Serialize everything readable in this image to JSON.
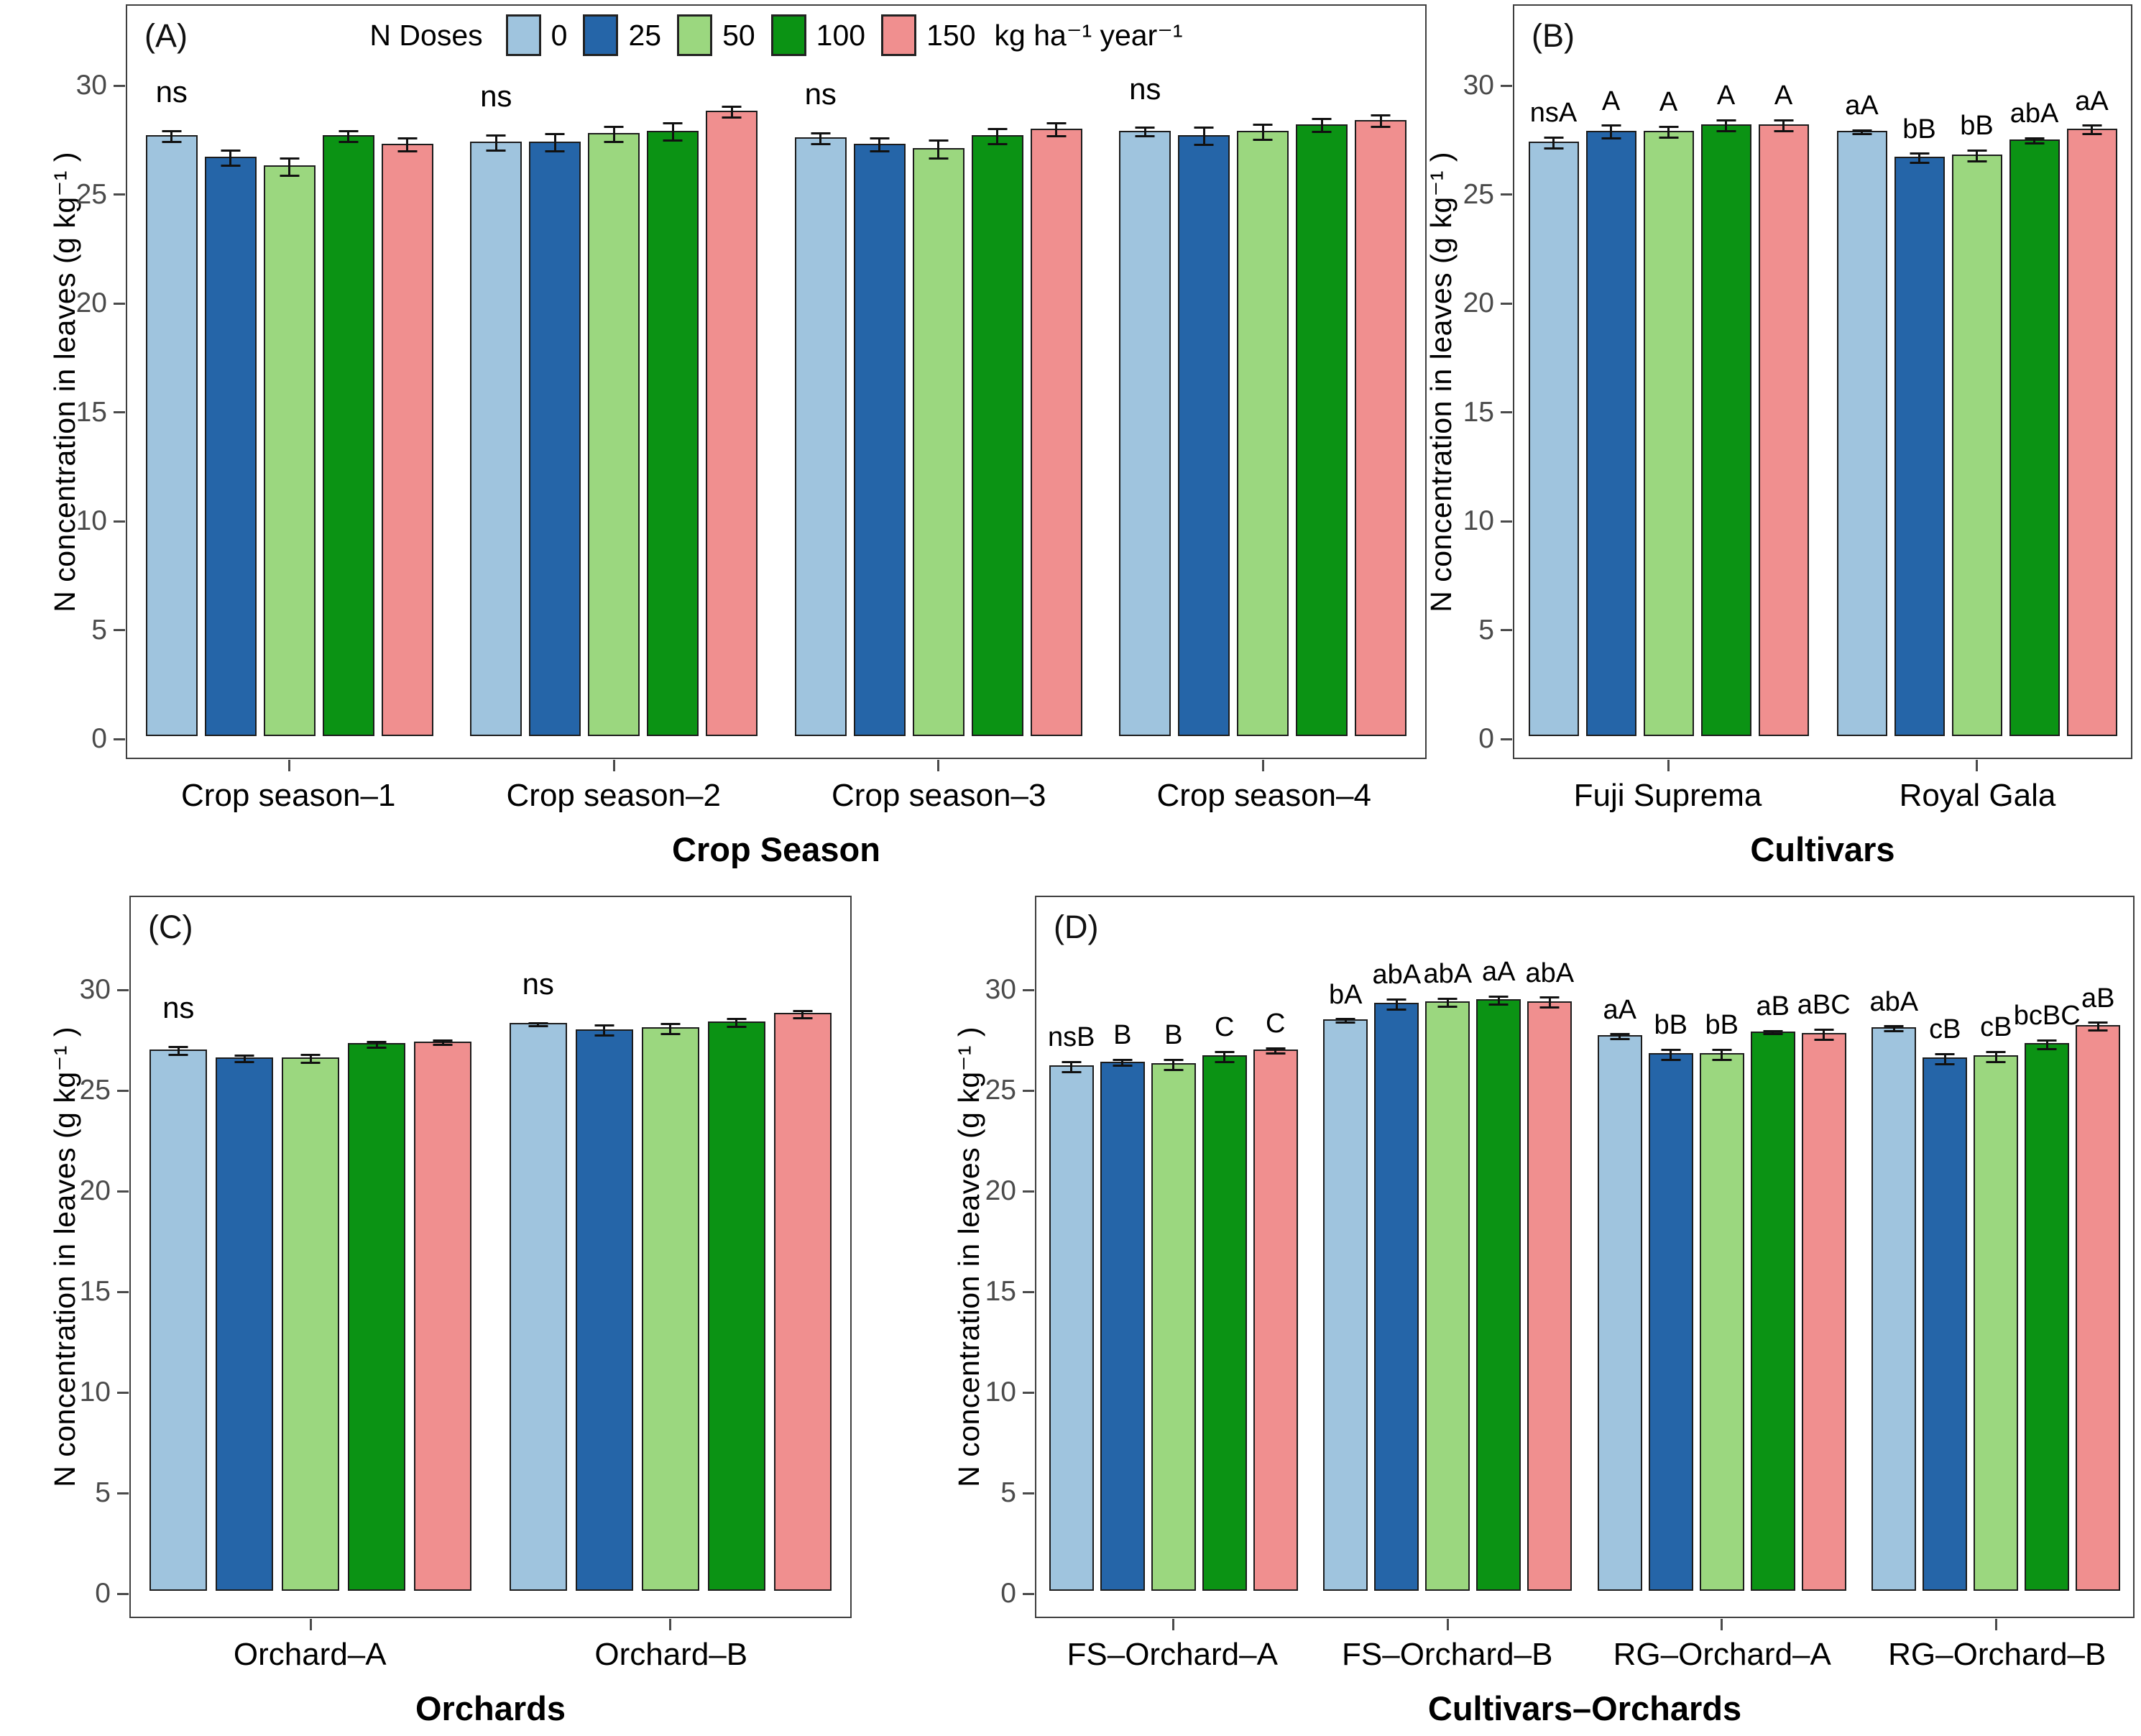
{
  "figure": {
    "background": "#ffffff",
    "ylabel": "N concentration in leaves (g kg⁻¹ )"
  },
  "legend": {
    "title": "N Doses",
    "unit": "kg ha⁻¹ year⁻¹",
    "entries": [
      {
        "label": "0",
        "color": "#9FC4DE"
      },
      {
        "label": "25",
        "color": "#2565A8"
      },
      {
        "label": "50",
        "color": "#9BD77F"
      },
      {
        "label": "100",
        "color": "#0B9314"
      },
      {
        "label": "150",
        "color": "#F08F8F"
      }
    ]
  },
  "chart_data": [
    {
      "type": "bar",
      "tag": "(A)",
      "xlabel": "Crop Season",
      "ylabel": "N concentration in leaves (g kg⁻¹ )",
      "ylim": [
        0,
        33.7
      ],
      "yticks": [
        0,
        5,
        10,
        15,
        20,
        25,
        30
      ],
      "grid": false,
      "legend_position": "top-inside",
      "series_labels": [
        "0",
        "25",
        "50",
        "100",
        "150"
      ],
      "groups": [
        {
          "category": "Crop season–1",
          "note": "ns",
          "values": [
            27.6,
            26.6,
            26.2,
            27.6,
            27.2
          ],
          "errors": [
            0.25,
            0.35,
            0.4,
            0.25,
            0.3
          ],
          "bar_notes": [
            "",
            "",
            "",
            "",
            ""
          ]
        },
        {
          "category": "Crop season–2",
          "note": "ns",
          "values": [
            27.3,
            27.3,
            27.7,
            27.8,
            28.7
          ],
          "errors": [
            0.35,
            0.4,
            0.35,
            0.4,
            0.25
          ],
          "bar_notes": [
            "",
            "",
            "",
            "",
            ""
          ]
        },
        {
          "category": "Crop season–3",
          "note": "ns",
          "values": [
            27.5,
            27.2,
            27.0,
            27.6,
            27.9
          ],
          "errors": [
            0.25,
            0.3,
            0.4,
            0.35,
            0.3
          ],
          "bar_notes": [
            "",
            "",
            "",
            "",
            ""
          ]
        },
        {
          "category": "Crop season–4",
          "note": "ns",
          "values": [
            27.8,
            27.6,
            27.8,
            28.1,
            28.3
          ],
          "errors": [
            0.2,
            0.4,
            0.35,
            0.3,
            0.25
          ],
          "bar_notes": [
            "",
            "",
            "",
            "",
            ""
          ]
        }
      ]
    },
    {
      "type": "bar",
      "tag": "(B)",
      "xlabel": "Cultivars",
      "ylabel": "N concentration in leaves (g kg⁻¹ )",
      "ylim": [
        0,
        33.7
      ],
      "yticks": [
        0,
        5,
        10,
        15,
        20,
        25,
        30
      ],
      "grid": false,
      "legend_position": "none",
      "series_labels": [
        "0",
        "25",
        "50",
        "100",
        "150"
      ],
      "groups": [
        {
          "category": "Fuji Suprema",
          "note": "",
          "values": [
            27.3,
            27.8,
            27.8,
            28.1,
            28.1
          ],
          "errors": [
            0.25,
            0.3,
            0.25,
            0.25,
            0.25
          ],
          "bar_notes": [
            "nsA",
            "A",
            "A",
            "A",
            "A"
          ]
        },
        {
          "category": "Royal Gala",
          "note": "",
          "values": [
            27.8,
            26.6,
            26.7,
            27.4,
            27.9
          ],
          "errors": [
            0.08,
            0.2,
            0.25,
            0.12,
            0.2
          ],
          "bar_notes": [
            "aA",
            "bB",
            "bB",
            "abA",
            "aA"
          ]
        }
      ]
    },
    {
      "type": "bar",
      "tag": "(C)",
      "xlabel": "Orchards",
      "ylabel": "N concentration in leaves (g kg⁻¹ )",
      "ylim": [
        0,
        34.6
      ],
      "yticks": [
        0,
        5,
        10,
        15,
        20,
        25,
        30
      ],
      "grid": false,
      "legend_position": "none",
      "series_labels": [
        "0",
        "25",
        "50",
        "100",
        "150"
      ],
      "groups": [
        {
          "category": "Orchard–A",
          "note": "ns",
          "values": [
            26.9,
            26.5,
            26.5,
            27.2,
            27.3
          ],
          "errors": [
            0.2,
            0.15,
            0.2,
            0.15,
            0.12
          ],
          "bar_notes": [
            "",
            "",
            "",
            "",
            ""
          ]
        },
        {
          "category": "Orchard–B",
          "note": "ns",
          "values": [
            28.2,
            27.9,
            28.0,
            28.3,
            28.7
          ],
          "errors": [
            0.08,
            0.25,
            0.25,
            0.2,
            0.18
          ],
          "bar_notes": [
            "",
            "",
            "",
            "",
            ""
          ]
        }
      ]
    },
    {
      "type": "bar",
      "tag": "(D)",
      "xlabel": "Cultivars–Orchards",
      "ylabel": "N concentration in leaves (g kg⁻¹ )",
      "ylim": [
        0,
        34.6
      ],
      "yticks": [
        0,
        5,
        10,
        15,
        20,
        25,
        30
      ],
      "grid": false,
      "legend_position": "none",
      "series_labels": [
        "0",
        "25",
        "50",
        "100",
        "150"
      ],
      "groups": [
        {
          "category": "FS–Orchard–A",
          "note": "",
          "values": [
            26.1,
            26.3,
            26.2,
            26.6,
            26.9
          ],
          "errors": [
            0.25,
            0.15,
            0.25,
            0.25,
            0.12
          ],
          "bar_notes": [
            "nsB",
            "B",
            "B",
            "C",
            "C"
          ]
        },
        {
          "category": "FS–Orchard–B",
          "note": "",
          "values": [
            28.4,
            29.2,
            29.3,
            29.4,
            29.3
          ],
          "errors": [
            0.08,
            0.25,
            0.2,
            0.2,
            0.25
          ],
          "bar_notes": [
            "bA",
            "abA",
            "abA",
            "aA",
            "abA"
          ]
        },
        {
          "category": "RG–Orchard–A",
          "note": "",
          "values": [
            27.6,
            26.7,
            26.7,
            27.8,
            27.7
          ],
          "errors": [
            0.12,
            0.25,
            0.25,
            0.08,
            0.25
          ],
          "bar_notes": [
            "aA",
            "bB",
            "bB",
            "aB",
            "aBC"
          ]
        },
        {
          "category": "RG–Orchard–B",
          "note": "",
          "values": [
            28.0,
            26.5,
            26.6,
            27.2,
            28.1
          ],
          "errors": [
            0.12,
            0.25,
            0.25,
            0.22,
            0.2
          ],
          "bar_notes": [
            "abA",
            "cB",
            "cB",
            "bcBC",
            "aB"
          ]
        }
      ]
    }
  ]
}
